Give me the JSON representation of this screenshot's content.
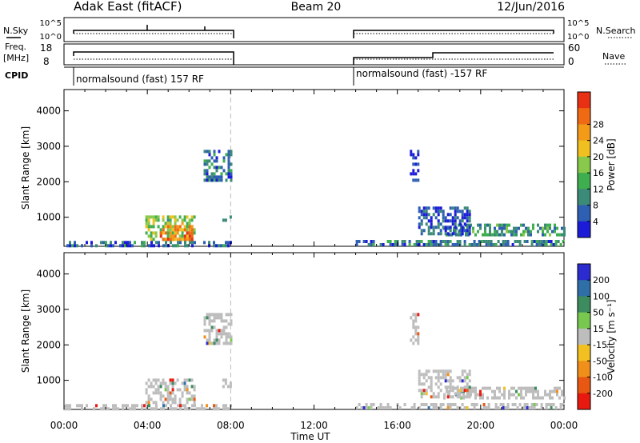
{
  "header": {
    "station": "Adak East (fitACF)",
    "beam": "Beam 20",
    "date": "12/Jun/2016"
  },
  "strips": {
    "nsky_label": "N.Sky",
    "nsearch_label": "N.Search",
    "noise_ticks": [
      "10^5",
      "10^0"
    ],
    "freq_label_1": "Freq.",
    "freq_label_2": "[MHz]",
    "freq_ticks": [
      "18",
      "8"
    ],
    "nave_label": "Nave",
    "nave_ticks": [
      "60",
      "0"
    ],
    "cpid_label": "CPID",
    "cpid_entries": [
      "normalsound (fast) 157 RF",
      "normalsound (fast) -157 RF"
    ]
  },
  "x_axis": {
    "label": "Time UT",
    "ticks": [
      "00:00",
      "04:00",
      "08:00",
      "12:00",
      "16:00",
      "20:00",
      "00:00"
    ]
  },
  "chart_data": [
    {
      "type": "heatmap",
      "panel": "power",
      "ylabel": "Slant Range [km]",
      "x_range_hours": [
        0,
        24
      ],
      "ylim": [
        180,
        4600
      ],
      "y_ticks": [
        1000,
        2000,
        3000,
        4000
      ],
      "colorbar_label": "Power [dB]",
      "colorbar_ticks": [
        "4",
        "8",
        "12",
        "16",
        "20",
        "24",
        "28"
      ],
      "colorbar_colors": [
        "#1b1bd8",
        "#2e5fb2",
        "#3c8a78",
        "#3fae4f",
        "#88c84a",
        "#f0c020",
        "#f39a18",
        "#ef6a12",
        "#e73014"
      ],
      "clusters": [
        {
          "t0": 3.9,
          "t1": 6.3,
          "r0": 340,
          "r1": 1050,
          "level": 0.5
        },
        {
          "t0": 4.6,
          "t1": 6.1,
          "r0": 330,
          "r1": 780,
          "level": 0.85
        },
        {
          "t0": 6.7,
          "t1": 8.0,
          "r0": 2050,
          "r1": 2900,
          "level": 0.25
        },
        {
          "t0": 7.6,
          "t1": 8.0,
          "r0": 850,
          "r1": 1050,
          "level": 0.2
        },
        {
          "t0": 18.2,
          "t1": 24.0,
          "r0": 480,
          "r1": 820,
          "level": 0.3
        },
        {
          "t0": 0.0,
          "t1": 8.0,
          "r0": 200,
          "r1": 330,
          "level": 0.2
        },
        {
          "t0": 14.0,
          "t1": 24.0,
          "r0": 200,
          "r1": 360,
          "level": 0.25
        },
        {
          "t0": 16.6,
          "t1": 17.0,
          "r0": 2000,
          "r1": 2900,
          "level": 0.1
        },
        {
          "t0": 17.0,
          "t1": 19.5,
          "r0": 550,
          "r1": 1300,
          "level": 0.15
        }
      ]
    },
    {
      "type": "heatmap",
      "panel": "velocity",
      "ylabel": "Slant Range [km]",
      "x_range_hours": [
        0,
        24
      ],
      "ylim": [
        180,
        4600
      ],
      "y_ticks": [
        1000,
        2000,
        3000,
        4000
      ],
      "colorbar_label": "Velocity [m s⁻¹]",
      "colorbar_ticks": [
        "200",
        "100",
        "50",
        "15",
        "-15",
        "-50",
        "-100",
        "-200"
      ],
      "colorbar_colors": [
        "#2b2bd0",
        "#2e6fa8",
        "#3c8c60",
        "#78c850",
        "#bdbdbd",
        "#f2c020",
        "#f0901a",
        "#e85812",
        "#e81a10"
      ],
      "clusters": [
        {
          "t0": 3.9,
          "t1": 6.3,
          "r0": 330,
          "r1": 1050,
          "level": 0.0
        },
        {
          "t0": 6.7,
          "t1": 8.0,
          "r0": 2050,
          "r1": 2900,
          "level": 0.0
        },
        {
          "t0": 7.6,
          "t1": 8.0,
          "r0": 850,
          "r1": 1050,
          "level": 0.0
        },
        {
          "t0": 18.2,
          "t1": 24.0,
          "r0": 480,
          "r1": 820,
          "level": 0.0
        },
        {
          "t0": 0.0,
          "t1": 8.0,
          "r0": 200,
          "r1": 330,
          "level": 0.0
        },
        {
          "t0": 14.0,
          "t1": 24.0,
          "r0": 200,
          "r1": 360,
          "level": 0.0
        },
        {
          "t0": 16.6,
          "t1": 17.0,
          "r0": 2000,
          "r1": 2900,
          "level": 0.0
        },
        {
          "t0": 17.0,
          "t1": 19.5,
          "r0": 550,
          "r1": 1300,
          "level": 0.0
        }
      ]
    }
  ]
}
